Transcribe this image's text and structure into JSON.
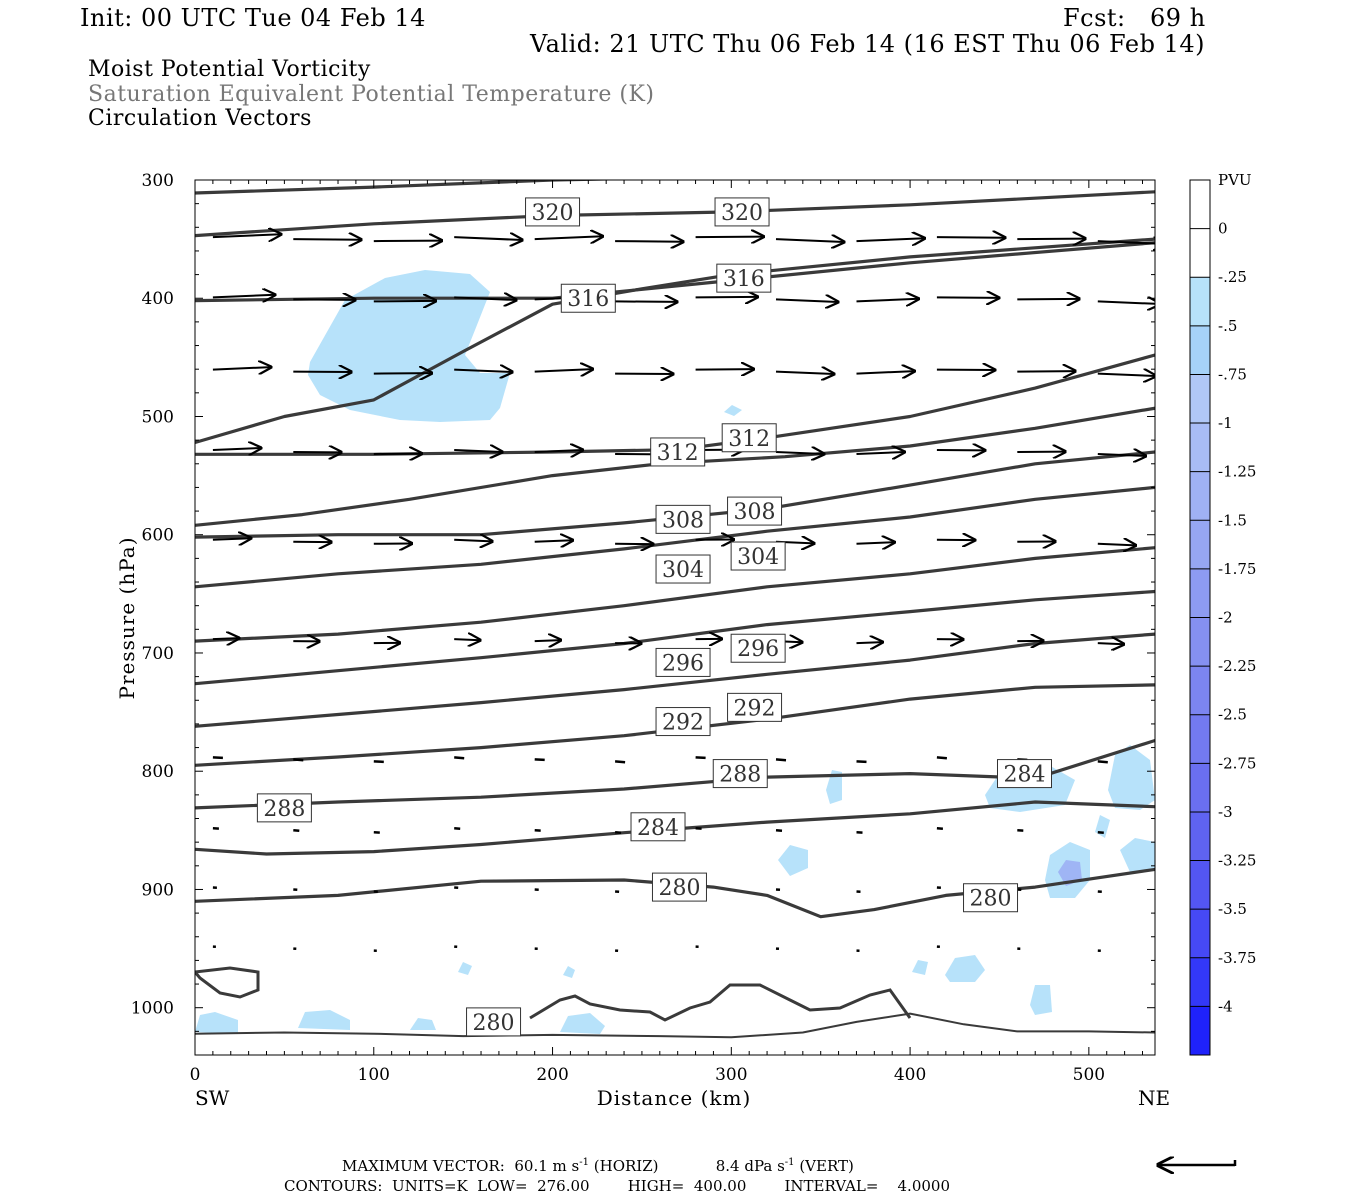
{
  "header": {
    "init": "Init: 00 UTC Tue 04 Feb 14",
    "fcst": "Fcst:   69 h",
    "valid": "Valid: 21 UTC Thu 06 Feb 14 (16 EST Thu 06 Feb 14)"
  },
  "titles": {
    "line1": "Moist Potential Vorticity",
    "line2": "Saturation Equivalent Potential Temperature (K)",
    "line3": "Circulation Vectors"
  },
  "footer": {
    "max_vector_label": "MAXIMUM VECTOR:",
    "max_horiz": "60.1 m s",
    "horiz_exp": "-1",
    "horiz_tag": "(HORIZ)",
    "max_vert": "8.4 dPa s",
    "vert_exp": "-1",
    "vert_tag": "(VERT)",
    "contours": "CONTOURS:  UNITS=K  LOW=  276.00        HIGH=  400.00        INTERVAL=    4.0000"
  },
  "colors": {
    "contour": "#3a3a3a",
    "mpv_light": "#b7e2fa",
    "mpv_mid": "#9fb5f5",
    "mpv_dark": "#8a9ff0"
  },
  "chart_data": {
    "type": "contour",
    "xlabel": "Distance (km)",
    "ylabel": "Pressure (hPa)",
    "xlim": [
      0,
      537
    ],
    "ylim": [
      1040,
      300
    ],
    "x_ticks": [
      0,
      100,
      200,
      300,
      400,
      500
    ],
    "y_ticks": [
      300,
      400,
      500,
      600,
      700,
      800,
      900,
      1000
    ],
    "left_end_label": "SW",
    "right_end_label": "NE",
    "contour_labels": [
      {
        "text": "320",
        "x": 200,
        "p": 327
      },
      {
        "text": "320",
        "x": 306,
        "p": 327
      },
      {
        "text": "316",
        "x": 220,
        "p": 400
      },
      {
        "text": "316",
        "x": 307,
        "p": 383
      },
      {
        "text": "312",
        "x": 270,
        "p": 530
      },
      {
        "text": "312",
        "x": 310,
        "p": 518
      },
      {
        "text": "308",
        "x": 273,
        "p": 587
      },
      {
        "text": "308",
        "x": 313,
        "p": 580
      },
      {
        "text": "304",
        "x": 273,
        "p": 629
      },
      {
        "text": "304",
        "x": 315,
        "p": 618
      },
      {
        "text": "296",
        "x": 273,
        "p": 708
      },
      {
        "text": "296",
        "x": 315,
        "p": 696
      },
      {
        "text": "292",
        "x": 273,
        "p": 758
      },
      {
        "text": "292",
        "x": 313,
        "p": 746
      },
      {
        "text": "288",
        "x": 50,
        "p": 831
      },
      {
        "text": "288",
        "x": 305,
        "p": 802
      },
      {
        "text": "284",
        "x": 259,
        "p": 847
      },
      {
        "text": "284",
        "x": 464,
        "p": 802
      },
      {
        "text": "280",
        "x": 271,
        "p": 898
      },
      {
        "text": "280",
        "x": 445,
        "p": 907
      },
      {
        "text": "280",
        "x": 167,
        "p": 1012
      }
    ],
    "isentropes": [
      {
        "theta": 320,
        "points": [
          [
            0,
            311
          ],
          [
            100,
            306
          ],
          [
            200,
            300
          ],
          [
            300,
            297
          ],
          [
            537,
            297
          ]
        ]
      },
      {
        "theta": 320,
        "points": [
          [
            0,
            347
          ],
          [
            100,
            337
          ],
          [
            200,
            330
          ],
          [
            300,
            327
          ],
          [
            400,
            321
          ],
          [
            537,
            310
          ]
        ]
      },
      {
        "theta": 316,
        "points": [
          [
            0,
            402
          ],
          [
            100,
            400
          ],
          [
            200,
            400
          ],
          [
            300,
            385
          ],
          [
            400,
            370
          ],
          [
            537,
            353
          ]
        ]
      },
      {
        "theta": 312,
        "points": [
          [
            0,
            522
          ],
          [
            50,
            500
          ],
          [
            100,
            486
          ],
          [
            150,
            445
          ],
          [
            200,
            405
          ],
          [
            250,
            392
          ],
          [
            300,
            380
          ],
          [
            400,
            365
          ],
          [
            537,
            350
          ]
        ]
      },
      {
        "theta": 312,
        "points": [
          [
            0,
            532
          ],
          [
            100,
            532
          ],
          [
            200,
            530
          ],
          [
            270,
            528
          ],
          [
            320,
            518
          ],
          [
            400,
            500
          ],
          [
            470,
            476
          ],
          [
            537,
            448
          ]
        ]
      },
      {
        "theta": 308,
        "points": [
          [
            0,
            592
          ],
          [
            60,
            583
          ],
          [
            120,
            570
          ],
          [
            200,
            550
          ],
          [
            260,
            540
          ],
          [
            330,
            534
          ],
          [
            400,
            525
          ],
          [
            470,
            510
          ],
          [
            537,
            493
          ]
        ]
      },
      {
        "theta": 304,
        "points": [
          [
            0,
            602
          ],
          [
            80,
            600
          ],
          [
            160,
            600
          ],
          [
            240,
            590
          ],
          [
            320,
            578
          ],
          [
            400,
            558
          ],
          [
            470,
            540
          ],
          [
            537,
            530
          ]
        ]
      },
      {
        "theta": 300,
        "points": [
          [
            0,
            644
          ],
          [
            80,
            633
          ],
          [
            160,
            625
          ],
          [
            240,
            612
          ],
          [
            320,
            597
          ],
          [
            400,
            585
          ],
          [
            470,
            570
          ],
          [
            537,
            560
          ]
        ]
      },
      {
        "theta": 296,
        "points": [
          [
            0,
            690
          ],
          [
            80,
            684
          ],
          [
            160,
            674
          ],
          [
            240,
            660
          ],
          [
            320,
            644
          ],
          [
            400,
            633
          ],
          [
            470,
            620
          ],
          [
            537,
            611
          ]
        ]
      },
      {
        "theta": 292,
        "points": [
          [
            0,
            726
          ],
          [
            80,
            715
          ],
          [
            160,
            704
          ],
          [
            240,
            692
          ],
          [
            320,
            676
          ],
          [
            400,
            665
          ],
          [
            470,
            655
          ],
          [
            537,
            648
          ]
        ]
      },
      {
        "theta": 288,
        "points": [
          [
            0,
            762
          ],
          [
            80,
            752
          ],
          [
            160,
            742
          ],
          [
            240,
            731
          ],
          [
            320,
            718
          ],
          [
            400,
            706
          ],
          [
            470,
            692
          ],
          [
            537,
            684
          ]
        ]
      },
      {
        "theta": 288,
        "points": [
          [
            0,
            795
          ],
          [
            80,
            788
          ],
          [
            160,
            780
          ],
          [
            240,
            770
          ],
          [
            320,
            756
          ],
          [
            400,
            739
          ],
          [
            470,
            729
          ],
          [
            537,
            727
          ]
        ]
      },
      {
        "theta": 284,
        "points": [
          [
            0,
            831
          ],
          [
            80,
            826
          ],
          [
            160,
            822
          ],
          [
            240,
            815
          ],
          [
            320,
            805
          ],
          [
            400,
            802
          ],
          [
            470,
            806
          ],
          [
            537,
            774
          ]
        ]
      },
      {
        "theta": 280,
        "points": [
          [
            0,
            866
          ],
          [
            40,
            870
          ],
          [
            100,
            868
          ],
          [
            160,
            862
          ],
          [
            240,
            852
          ],
          [
            320,
            843
          ],
          [
            400,
            836
          ],
          [
            470,
            826
          ],
          [
            537,
            830
          ]
        ]
      },
      {
        "theta": 276,
        "points": [
          [
            0,
            910
          ],
          [
            80,
            905
          ],
          [
            160,
            893
          ],
          [
            240,
            892
          ],
          [
            290,
            898
          ],
          [
            320,
            905
          ],
          [
            350,
            923
          ],
          [
            380,
            917
          ],
          [
            420,
            905
          ],
          [
            470,
            898
          ],
          [
            537,
            883
          ]
        ]
      },
      {
        "theta": 280,
        "points": [
          [
            0,
            1022
          ],
          [
            50,
            1021
          ],
          [
            100,
            1022
          ],
          [
            150,
            1024
          ],
          [
            200,
            1023
          ],
          [
            260,
            1024
          ],
          [
            300,
            1025
          ],
          [
            340,
            1021
          ],
          [
            370,
            1012
          ],
          [
            400,
            1005
          ],
          [
            430,
            1014
          ],
          [
            460,
            1020
          ],
          [
            500,
            1020
          ],
          [
            537,
            1021
          ]
        ]
      }
    ],
    "vectors_rows_hPa": [
      350,
      401,
      462,
      530,
      606,
      690,
      790,
      850,
      900,
      950
    ],
    "pvu_colorbar": {
      "unit": "PVU",
      "levels": [
        "0",
        "-.25",
        "-.5",
        "-.75",
        "-1",
        "-1.25",
        "-1.5",
        "-1.75",
        "-2",
        "-2.25",
        "-2.5",
        "-2.75",
        "-3",
        "-3.25",
        "-3.5",
        "-3.75",
        "-4"
      ],
      "colors": [
        "#ffffff",
        "#ffffff",
        "#b7e2fa",
        "#a6d2f8",
        "#b0c7f6",
        "#a8bcf5",
        "#9fb1f4",
        "#96a6f3",
        "#8d9bf2",
        "#8590f1",
        "#7c85f0",
        "#737af0",
        "#6a6ff0",
        "#5f63f1",
        "#5356f3",
        "#4649f5",
        "#3338f8",
        "#1f22fb"
      ]
    }
  }
}
